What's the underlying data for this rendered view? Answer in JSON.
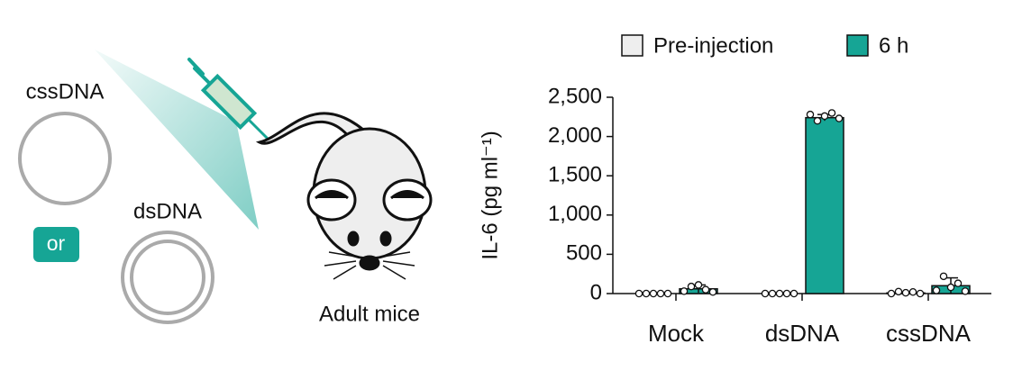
{
  "diagram": {
    "circle_label": "cssDNA",
    "double_circle_label": "dsDNA",
    "or_label": "or",
    "mouse_label": "Adult mice"
  },
  "chart_data": {
    "type": "bar",
    "categories": [
      "Mock",
      "dsDNA",
      "cssDNA"
    ],
    "series": [
      {
        "name": "Pre-injection",
        "color": "#eeeeee",
        "values": [
          0,
          0,
          8
        ],
        "errors": [
          0,
          0,
          10
        ],
        "points": [
          [
            0,
            0,
            0,
            0,
            0
          ],
          [
            0,
            0,
            0,
            0,
            0
          ],
          [
            0,
            25,
            10,
            20,
            0
          ]
        ]
      },
      {
        "name": "6 h",
        "color": "#16a595",
        "values": [
          60,
          2240,
          100
        ],
        "errors": [
          50,
          40,
          100
        ],
        "points": [
          [
            30,
            90,
            110,
            50,
            20
          ],
          [
            2280,
            2200,
            2260,
            2300,
            2230
          ],
          [
            40,
            220,
            80,
            130,
            30
          ]
        ]
      }
    ],
    "y_label": "IL-6 (pg ml⁻¹)",
    "ylim": [
      0,
      2500
    ],
    "yticks": [
      0,
      500,
      {
        "value": 1000,
        "label": "1,000"
      },
      {
        "value": 1500,
        "label": "1,500"
      },
      {
        "value": 2000,
        "label": "2,000"
      },
      {
        "value": 2500,
        "label": "2,500"
      }
    ],
    "legend": "top"
  }
}
